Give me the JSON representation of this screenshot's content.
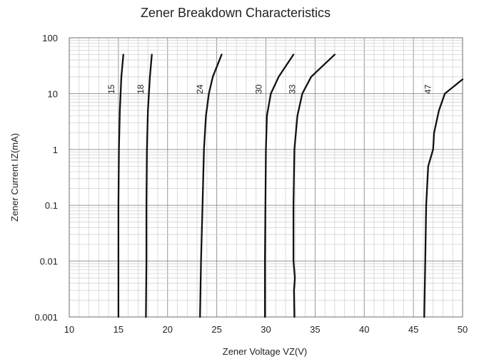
{
  "chart_data": {
    "type": "line",
    "title": "Zener Breakdown Characteristics",
    "xlabel": "Zener Voltage    VZ(V)",
    "ylabel": "Zener Current   IZ(mA)",
    "xlim": [
      10,
      50
    ],
    "ylim": [
      0.001,
      100
    ],
    "yscale": "log",
    "grid": true,
    "x_ticks": [
      "10",
      "15",
      "20",
      "25",
      "30",
      "35",
      "40",
      "45",
      "50"
    ],
    "y_ticks": [
      "0.001",
      "0.01",
      "0.1",
      "1",
      "10",
      "100"
    ],
    "series": [
      {
        "name": "15",
        "points": [
          [
            15.0,
            0.001
          ],
          [
            15.0,
            0.01
          ],
          [
            15.0,
            0.1
          ],
          [
            15.05,
            1
          ],
          [
            15.15,
            5
          ],
          [
            15.3,
            20
          ],
          [
            15.5,
            50
          ]
        ]
      },
      {
        "name": "18",
        "points": [
          [
            17.8,
            0.001
          ],
          [
            17.85,
            0.01
          ],
          [
            17.85,
            0.1
          ],
          [
            17.9,
            1
          ],
          [
            18.0,
            5
          ],
          [
            18.2,
            20
          ],
          [
            18.4,
            50
          ]
        ]
      },
      {
        "name": "24",
        "points": [
          [
            23.3,
            0.001
          ],
          [
            23.4,
            0.01
          ],
          [
            23.55,
            0.1
          ],
          [
            23.7,
            1
          ],
          [
            23.9,
            4
          ],
          [
            24.2,
            10
          ],
          [
            24.6,
            20
          ],
          [
            25.5,
            50
          ]
        ]
      },
      {
        "name": "30",
        "points": [
          [
            29.9,
            0.001
          ],
          [
            29.9,
            0.01
          ],
          [
            29.95,
            0.1
          ],
          [
            30.0,
            1
          ],
          [
            30.1,
            4
          ],
          [
            30.5,
            10
          ],
          [
            31.3,
            20
          ],
          [
            32.8,
            50
          ]
        ]
      },
      {
        "name": "33",
        "points": [
          [
            32.9,
            0.001
          ],
          [
            32.85,
            0.003
          ],
          [
            32.95,
            0.005
          ],
          [
            32.8,
            0.01
          ],
          [
            32.8,
            0.1
          ],
          [
            32.9,
            1
          ],
          [
            33.2,
            4
          ],
          [
            33.7,
            10
          ],
          [
            34.6,
            20
          ],
          [
            37.0,
            50
          ]
        ]
      },
      {
        "name": "47",
        "points": [
          [
            46.1,
            0.001
          ],
          [
            46.2,
            0.01
          ],
          [
            46.3,
            0.1
          ],
          [
            46.5,
            0.5
          ],
          [
            47.0,
            1
          ],
          [
            47.1,
            2
          ],
          [
            47.6,
            5
          ],
          [
            48.2,
            10
          ],
          [
            50.0,
            18
          ]
        ]
      }
    ],
    "curve_label_positions": {
      "15": [
        15.0,
        12
      ],
      "18": [
        18.0,
        12
      ],
      "24": [
        24.0,
        12
      ],
      "30": [
        30.0,
        12
      ],
      "33": [
        33.4,
        12
      ],
      "47": [
        47.2,
        12
      ]
    }
  }
}
